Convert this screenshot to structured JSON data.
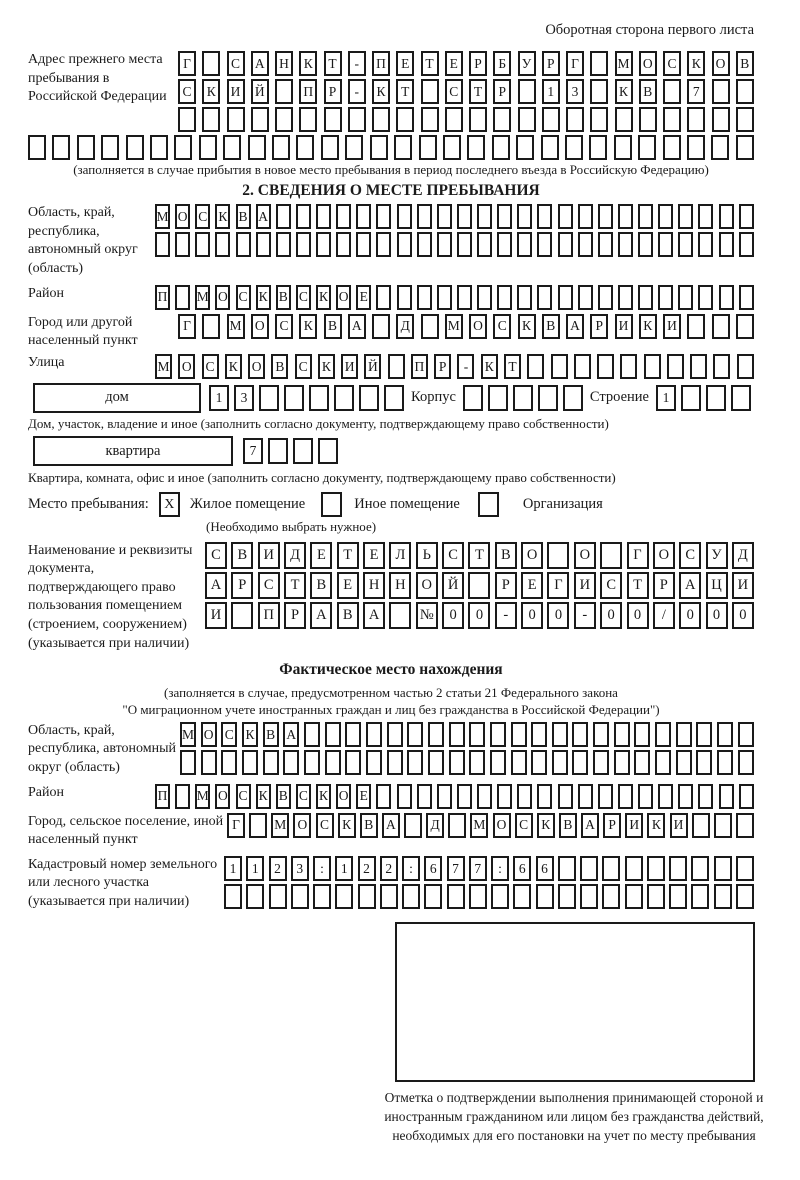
{
  "style": {
    "ink": "#1a1a1a",
    "paper": "#ffffff"
  },
  "header": {
    "note": "Оборотная сторона первого листа"
  },
  "prev_address": {
    "label": "Адрес прежнего места пребывания в Российской Федерации",
    "rows": [
      "Г САНКТ-ПЕТЕРБУРГ МОСКОВ",
      "СКИЙ ПР-КТ СТР 13 КВ 7  ",
      "                        ",
      "                              "
    ],
    "caption": "(заполняется в случае прибытия в новое место пребывания в период последнего въезда в Российскую Федерацию)"
  },
  "section2": {
    "title": "2. СВЕДЕНИЯ О МЕСТЕ ПРЕБЫВАНИЯ",
    "oblast": {
      "label": "Область, край, республика, автономный округ (область)",
      "rows": [
        "МОСКВА                        ",
        "                              "
      ]
    },
    "raion": {
      "label": "Район",
      "row": "П МОСКВСКОЕ                   "
    },
    "gorod": {
      "label": "Город или другой населенный пункт",
      "row": "Г МОСКВА Д МОСКВАРИКИ   "
    },
    "ulitsa": {
      "label": "Улица",
      "row": "МОСКОВСКИЙ ПР-КТ          "
    },
    "dom": {
      "box_label": "дом",
      "cells": "13      ",
      "korpus_label": "Корпус",
      "korpus_cells": "     ",
      "stroenie_label": "Строение",
      "stroenie_cells": "1   ",
      "caption": "Дом, участок, владение и иное (заполнить согласно документу, подтверждающему право собственности)"
    },
    "kvartira": {
      "box_label": "квартира",
      "cells": "7   ",
      "caption": "Квартира, комната, офис и иное (заполнить согласно документу, подтверждающему право собственности)"
    },
    "mesto": {
      "label": "Место пребывания:",
      "options": [
        {
          "mark": "X",
          "label": "Жилое помещение"
        },
        {
          "mark": "",
          "label": "Иное помещение"
        },
        {
          "mark": "",
          "label": "Организация"
        }
      ],
      "caption": "(Необходимо выбрать нужное)"
    },
    "doc": {
      "label": "Наименование и реквизиты документа, подтверждающего право пользования помещением (строением, сооружением) (указывается при наличии)",
      "rows": [
        "СВИДЕТЕЛЬСТВО О ГОСУД",
        "АРСТВЕННОЙ РЕГИСТРАЦИ",
        "И ПРАВА №00-00-00/000"
      ]
    }
  },
  "fact": {
    "title": "Фактическое место нахождения",
    "caption1": "(заполняется в случае, предусмотренном частью 2 статьи 21 Федерального закона",
    "caption2": "\"О миграционном учете иностранных граждан и лиц без гражданства в Российской Федерации\")",
    "oblast": {
      "label": "Область, край, республика, автономный округ (область)",
      "rows": [
        "МОСКВА                      ",
        "                            "
      ]
    },
    "raion": {
      "label": "Район",
      "row": "П МОСКВСКОЕ                   "
    },
    "gorod": {
      "label": "Город, сельское поселение, иной населенный пункт",
      "row": "Г МОСКВА Д МОСКВАРИКИ   "
    },
    "kadastr": {
      "label": "Кадастровый номер земельного или лесного участка (указывается при наличии)",
      "rows": [
        "1123:122:677:66         ",
        "                        "
      ]
    },
    "stamp_caption": "Отметка о подтверждении выполнения принимающей стороной и иностранным гражданином или лицом без гражданства действий, необходимых для его постановки на учет по месту пребывания"
  }
}
